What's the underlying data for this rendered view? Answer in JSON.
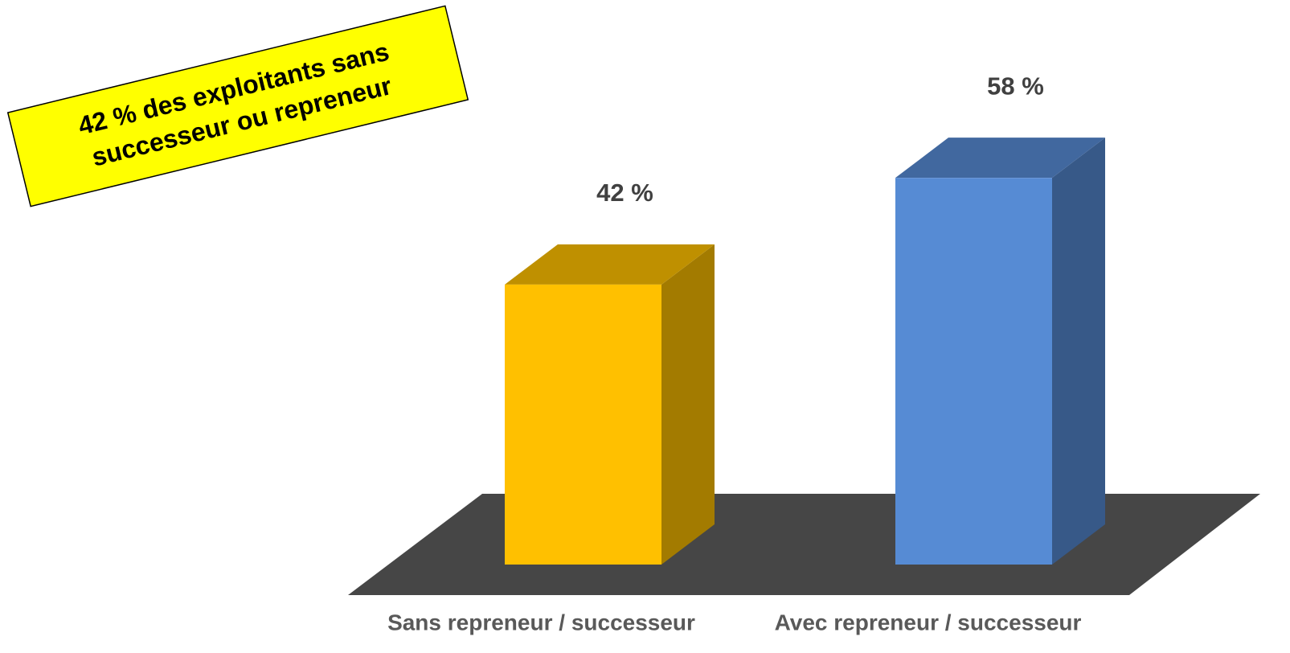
{
  "chart_data": {
    "type": "bar3d",
    "categories": [
      "Sans repreneur / successeur",
      "Avec repreneur / successeur"
    ],
    "values": [
      42,
      58
    ],
    "value_labels": [
      "42 %",
      "58 %"
    ],
    "colors": [
      "#FFC000",
      "#568BD4"
    ],
    "annotation": [
      "42 % des exploitants sans",
      "successeur ou repreneur"
    ]
  }
}
